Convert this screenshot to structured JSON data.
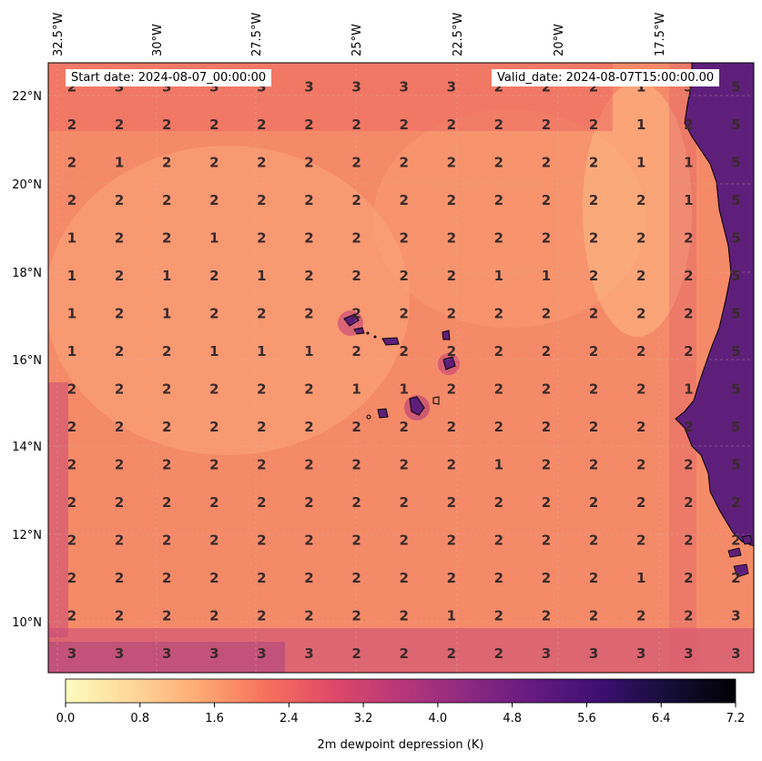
{
  "header": {
    "start_date": "Start date: 2024-08-07_00:00:00",
    "valid_date": "Valid_date: 2024-08-07T15:00:00.00"
  },
  "axes": {
    "lon_labels": [
      "32.5°W",
      "30°W",
      "27.5°W",
      "25°W",
      "22.5°W",
      "20°W",
      "17.5°W"
    ],
    "lat_labels": [
      "22°N",
      "20°N",
      "18°N",
      "16°N",
      "14°N",
      "12°N",
      "10°N"
    ]
  },
  "colorbar": {
    "label": "2m dewpoint depression (K)",
    "ticks": [
      "0.0",
      "0.8",
      "1.6",
      "2.4",
      "3.2",
      "4.0",
      "4.8",
      "5.6",
      "6.4",
      "7.2"
    ],
    "min": 0.0,
    "max": 7.2,
    "levels": 36,
    "colormap": "magma_r",
    "colors": [
      "#fcfdbf",
      "#fed799",
      "#fea973",
      "#f7705c",
      "#de4968",
      "#b73779",
      "#8c2981",
      "#641a80",
      "#3b0f70",
      "#140e36",
      "#000004"
    ]
  },
  "grid_values": [
    [
      "2",
      "3",
      "3",
      "3",
      "3",
      "3",
      "3",
      "3",
      "3",
      "2",
      "2",
      "2",
      "1",
      "5",
      "5"
    ],
    [
      "2",
      "2",
      "2",
      "2",
      "2",
      "2",
      "2",
      "2",
      "2",
      "2",
      "2",
      "2",
      "1",
      "2",
      "5"
    ],
    [
      "2",
      "1",
      "2",
      "2",
      "2",
      "2",
      "2",
      "2",
      "2",
      "2",
      "2",
      "2",
      "1",
      "1",
      "5"
    ],
    [
      "2",
      "2",
      "2",
      "2",
      "2",
      "2",
      "2",
      "2",
      "2",
      "2",
      "2",
      "2",
      "2",
      "1",
      "5"
    ],
    [
      "1",
      "2",
      "2",
      "1",
      "2",
      "2",
      "2",
      "2",
      "2",
      "2",
      "2",
      "2",
      "2",
      "2",
      "5"
    ],
    [
      "1",
      "2",
      "1",
      "2",
      "1",
      "2",
      "2",
      "2",
      "2",
      "1",
      "1",
      "2",
      "2",
      "2",
      "5"
    ],
    [
      "1",
      "2",
      "1",
      "2",
      "2",
      "2",
      "2",
      "2",
      "2",
      "2",
      "2",
      "2",
      "2",
      "2",
      "5"
    ],
    [
      "1",
      "2",
      "2",
      "1",
      "1",
      "1",
      "2",
      "2",
      "2",
      "2",
      "2",
      "2",
      "2",
      "2",
      "5"
    ],
    [
      "2",
      "2",
      "2",
      "2",
      "2",
      "2",
      "1",
      "1",
      "2",
      "2",
      "2",
      "2",
      "2",
      "1",
      "5"
    ],
    [
      "2",
      "2",
      "2",
      "2",
      "2",
      "2",
      "2",
      "2",
      "2",
      "2",
      "2",
      "2",
      "2",
      "2",
      "5"
    ],
    [
      "2",
      "2",
      "2",
      "2",
      "2",
      "2",
      "2",
      "2",
      "2",
      "1",
      "2",
      "2",
      "2",
      "2",
      "5"
    ],
    [
      "2",
      "2",
      "2",
      "2",
      "2",
      "2",
      "2",
      "2",
      "2",
      "2",
      "2",
      "2",
      "2",
      "2",
      "2"
    ],
    [
      "2",
      "2",
      "2",
      "2",
      "2",
      "2",
      "2",
      "2",
      "2",
      "2",
      "2",
      "2",
      "2",
      "2",
      "2"
    ],
    [
      "2",
      "2",
      "2",
      "2",
      "2",
      "2",
      "2",
      "2",
      "2",
      "2",
      "2",
      "2",
      "1",
      "2",
      "2"
    ],
    [
      "2",
      "2",
      "2",
      "2",
      "2",
      "2",
      "2",
      "2",
      "1",
      "2",
      "2",
      "2",
      "2",
      "2",
      "3"
    ],
    [
      "3",
      "3",
      "3",
      "3",
      "3",
      "3",
      "2",
      "2",
      "2",
      "2",
      "3",
      "3",
      "3",
      "3",
      "3"
    ]
  ]
}
